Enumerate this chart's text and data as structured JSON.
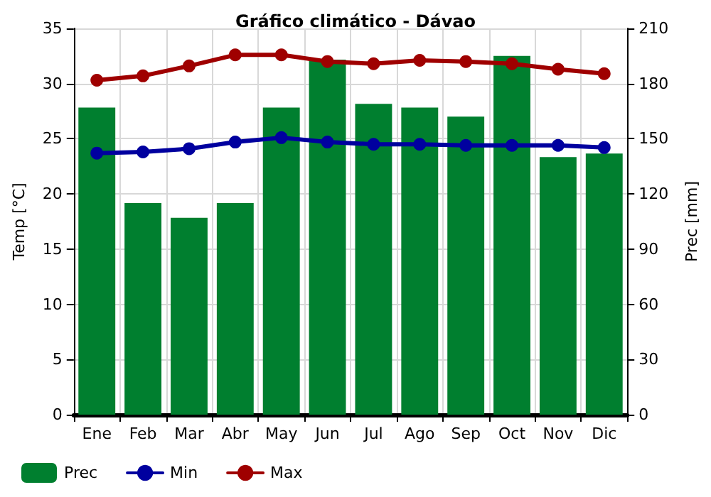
{
  "chart_data": {
    "type": "bar",
    "title": "Gráfico climático - Dávao",
    "ylabel": "Temp [°C]",
    "y2label": "Prec [mm]",
    "categories": [
      "Ene",
      "Feb",
      "Mar",
      "Abr",
      "May",
      "Jun",
      "Jul",
      "Ago",
      "Sep",
      "Oct",
      "Nov",
      "Dic"
    ],
    "series": [
      {
        "name": "Prec",
        "axis": "y2",
        "color": "#007f2f",
        "values": [
          167,
          115,
          107,
          115,
          167,
          193,
          169,
          167,
          162,
          195,
          140,
          142
        ]
      },
      {
        "name": "Min",
        "type": "line",
        "color": "#00009f",
        "values": [
          23.7,
          23.8,
          24.1,
          24.7,
          25.1,
          24.7,
          24.5,
          24.5,
          24.4,
          24.4,
          24.4,
          24.2
        ]
      },
      {
        "name": "Max",
        "type": "line",
        "color": "#9f0000",
        "values": [
          30.3,
          30.7,
          31.6,
          32.6,
          32.6,
          32.0,
          31.8,
          32.1,
          32.0,
          31.8,
          31.3,
          30.9
        ]
      }
    ],
    "ylim": [
      0,
      35
    ],
    "yticks": [
      0,
      5,
      10,
      15,
      20,
      25,
      30,
      35
    ],
    "y2lim": [
      0,
      210
    ],
    "y2ticks": [
      0,
      30,
      60,
      90,
      120,
      150,
      180,
      210
    ],
    "grid": true,
    "legend": "bottom left",
    "marker": "circle",
    "line_style": "solid"
  }
}
